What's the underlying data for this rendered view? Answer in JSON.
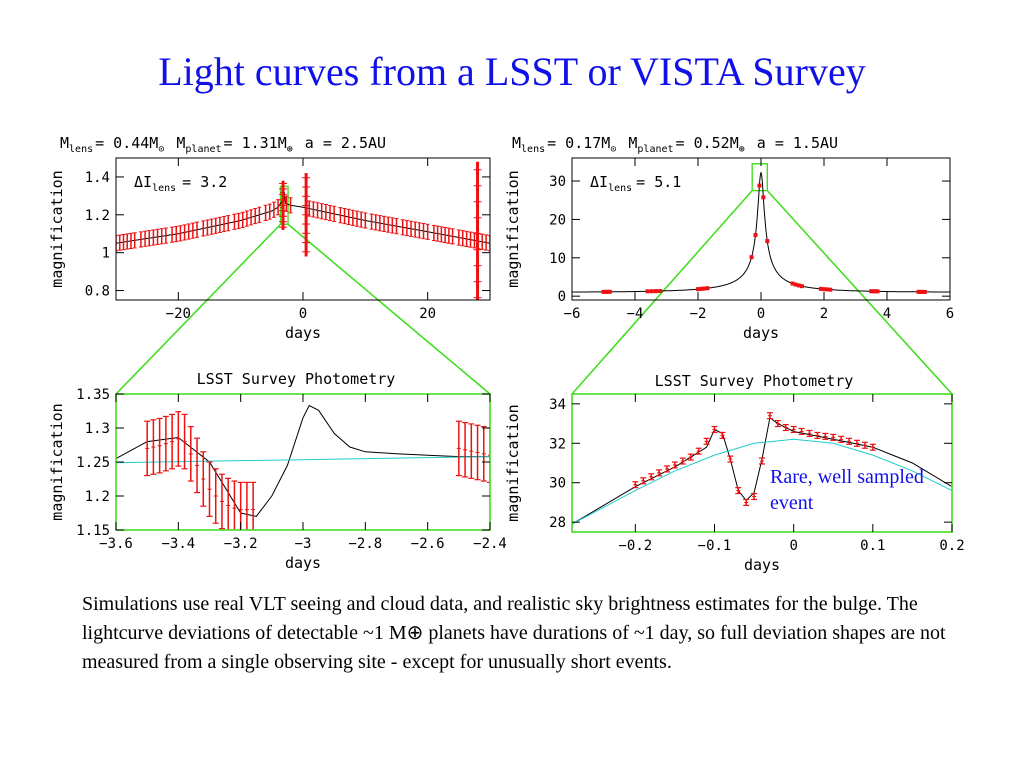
{
  "slide": {
    "title": "Light curves from a LSST or VISTA Survey",
    "body": "Simulations use real VLT seeing and cloud data, and realistic sky brightness estimates for the bulge. The lightcurve deviations of detectable ~1 M⊕  planets have durations of ~1 day, so full deviation shapes are not measured from a single observing site - except for unusually short events.",
    "annotation": "Rare, well sampled event"
  },
  "panels": {
    "tl": {
      "caption": {
        "m1": "M",
        "s1": "lens",
        "t1": "= 0.44M",
        "sym1": "⊙",
        "m2": "M",
        "s2": "planet",
        "t2": "= 1.31M",
        "sym2": "⊕",
        "t3": "a = 2.5AU"
      },
      "delta": {
        "d": "ΔI",
        "sub": "lens",
        "val": "= 3.2"
      }
    },
    "tr": {
      "caption": {
        "m1": "M",
        "s1": "lens",
        "t1": "= 0.17M",
        "sym1": "⊙",
        "m2": "M",
        "s2": "planet",
        "t2": "= 0.52M",
        "sym2": "⊕",
        "t3": "a = 1.5AU"
      },
      "delta": {
        "d": "ΔI",
        "sub": "lens",
        "val": "= 5.1"
      }
    },
    "bl": {
      "title": "LSST Survey Photometry"
    },
    "br": {
      "title": "LSST Survey Photometry"
    }
  },
  "colors": {
    "model": "#000000",
    "data": "#ee1111",
    "baseline": "#22cccc",
    "connector": "#44dd22",
    "title": "#1010e8"
  },
  "chart_data": [
    {
      "id": "tl",
      "type": "line",
      "xlabel": "days",
      "ylabel": "magnification",
      "xlim": [
        -30,
        30
      ],
      "ylim": [
        0.75,
        1.5
      ],
      "xticks": [
        -20,
        0,
        20
      ],
      "yticks": [
        0.8,
        1,
        1.2,
        1.4
      ],
      "ytick_labels": [
        "0.8",
        "1",
        "1.2",
        "1.4"
      ],
      "series": [
        {
          "type": "model",
          "points": [
            [
              -30,
              1.05
            ],
            [
              -20,
              1.1
            ],
            [
              -10,
              1.17
            ],
            [
              -5,
              1.22
            ],
            [
              -4,
              1.24
            ],
            [
              -3.4,
              1.27
            ],
            [
              -3,
              1.32
            ],
            [
              -2.8,
              1.26
            ],
            [
              -2,
              1.25
            ],
            [
              0,
              1.24
            ],
            [
              10,
              1.17
            ],
            [
              20,
              1.11
            ],
            [
              30,
              1.05
            ]
          ]
        },
        {
          "type": "data_segments",
          "segments": [
            [
              -30,
              -27
            ],
            [
              -26,
              -22
            ],
            [
              -21,
              -17
            ],
            [
              -16,
              -12
            ],
            [
              -11,
              -7
            ],
            [
              -6,
              -2
            ],
            [
              1,
              5
            ],
            [
              6,
              10
            ],
            [
              11,
              15
            ],
            [
              16,
              20
            ],
            [
              21,
              24
            ],
            [
              25,
              30
            ]
          ],
          "err": 0.04
        },
        {
          "type": "spikes",
          "points": [
            [
              -3.2,
              1.25,
              0.13
            ],
            [
              0.5,
              1.2,
              0.22
            ],
            [
              28,
              1.1,
              0.38
            ]
          ]
        }
      ]
    },
    {
      "id": "tr",
      "type": "line",
      "xlabel": "days",
      "ylabel": "magnification",
      "xlim": [
        -6,
        6
      ],
      "ylim": [
        -1,
        36
      ],
      "xticks": [
        -6,
        -4,
        -2,
        0,
        2,
        4,
        6
      ],
      "yticks": [
        0,
        10,
        20,
        30
      ],
      "ytick_labels": [
        "0",
        "10",
        "20",
        "30"
      ],
      "series": [
        {
          "type": "model",
          "u0": 0.031,
          "tE": 3.2
        },
        {
          "type": "data_segments",
          "segments": [
            [
              -5,
              -4.8
            ],
            [
              -3.6,
              -3.2
            ],
            [
              -2,
              -1.7
            ],
            [
              -0.3,
              0.2
            ],
            [
              1,
              1.3
            ],
            [
              1.9,
              2.2
            ],
            [
              3.5,
              3.7
            ],
            [
              5,
              5.2
            ]
          ]
        }
      ]
    },
    {
      "id": "bl",
      "type": "line",
      "title": "LSST Survey Photometry",
      "xlabel": "days",
      "ylabel": "magnification",
      "xlim": [
        -3.6,
        -2.4
      ],
      "ylim": [
        1.15,
        1.35
      ],
      "xticks": [
        -3.6,
        -3.4,
        -3.2,
        -3,
        -2.8,
        -2.6,
        -2.4
      ],
      "xtick_labels": [
        "−3.6",
        "−3.4",
        "−3.2",
        "−3",
        "−2.8",
        "−2.6",
        "−2.4"
      ],
      "yticks": [
        1.15,
        1.2,
        1.25,
        1.3,
        1.35
      ],
      "ytick_labels": [
        "1.15",
        "1.2",
        "1.25",
        "1.3",
        "1.35"
      ],
      "series": [
        {
          "name": "",
          "type": "model",
          "points": [
            [
              -3.6,
              1.255
            ],
            [
              -3.5,
              1.28
            ],
            [
              -3.4,
              1.286
            ],
            [
              -3.3,
              1.25
            ],
            [
              -3.2,
              1.175
            ],
            [
              -3.15,
              1.17
            ],
            [
              -3.1,
              1.2
            ],
            [
              -3.05,
              1.245
            ],
            [
              -3.0,
              1.315
            ],
            [
              -2.98,
              1.333
            ],
            [
              -2.95,
              1.326
            ],
            [
              -2.9,
              1.292
            ],
            [
              -2.85,
              1.272
            ],
            [
              -2.8,
              1.265
            ],
            [
              -2.7,
              1.262
            ],
            [
              -2.6,
              1.26
            ],
            [
              -2.5,
              1.258
            ],
            [
              -2.4,
              1.258
            ]
          ]
        },
        {
          "name": "",
          "type": "baseline",
          "points": [
            [
              -3.6,
              1.249
            ],
            [
              -2.4,
              1.258
            ]
          ]
        },
        {
          "name": "",
          "type": "errorbars",
          "x": [
            -3.5,
            -3.48,
            -3.46,
            -3.44,
            -3.42,
            -3.4,
            -3.38,
            -3.36,
            -3.34,
            -3.32,
            -3.3,
            -3.28,
            -3.26,
            -3.24,
            -3.22,
            -3.2,
            -3.18,
            -3.16,
            -2.5,
            -2.48,
            -2.46,
            -2.44,
            -2.42,
            -2.4
          ],
          "y": [
            1.27,
            1.272,
            1.274,
            1.277,
            1.28,
            1.284,
            1.28,
            1.262,
            1.245,
            1.225,
            1.21,
            1.2,
            1.192,
            1.186,
            1.182,
            1.18,
            1.18,
            1.18,
            1.27,
            1.268,
            1.266,
            1.264,
            1.262,
            1.26
          ],
          "err": 0.04
        }
      ]
    },
    {
      "id": "br",
      "type": "line",
      "title": "LSST Survey Photometry",
      "xlabel": "days",
      "ylabel": "magnification",
      "xlim": [
        -0.28,
        0.2
      ],
      "ylim": [
        27.5,
        34.5
      ],
      "xticks": [
        -0.2,
        -0.1,
        0,
        0.1,
        0.2
      ],
      "xtick_labels": [
        "−0.2",
        "−0.1",
        "0",
        "0.1",
        "0.2"
      ],
      "yticks": [
        28,
        30,
        32,
        34
      ],
      "ytick_labels": [
        "28",
        "30",
        "32",
        "34"
      ],
      "series": [
        {
          "name": "",
          "type": "model",
          "points": [
            [
              -0.28,
              27.9
            ],
            [
              -0.2,
              29.8
            ],
            [
              -0.15,
              30.8
            ],
            [
              -0.11,
              31.8
            ],
            [
              -0.1,
              32.7
            ],
            [
              -0.09,
              32.5
            ],
            [
              -0.08,
              31.2
            ],
            [
              -0.07,
              29.6
            ],
            [
              -0.06,
              29.1
            ],
            [
              -0.05,
              29.5
            ],
            [
              -0.04,
              31.2
            ],
            [
              -0.03,
              33.3
            ],
            [
              -0.02,
              33.0
            ],
            [
              0,
              32.6
            ],
            [
              0.05,
              32.2
            ],
            [
              0.1,
              31.8
            ],
            [
              0.15,
              31.0
            ],
            [
              0.2,
              29.8
            ]
          ]
        },
        {
          "name": "",
          "type": "baseline",
          "points": [
            [
              -0.28,
              27.9
            ],
            [
              -0.2,
              29.6
            ],
            [
              -0.15,
              30.6
            ],
            [
              -0.1,
              31.4
            ],
            [
              -0.05,
              32.0
            ],
            [
              0,
              32.2
            ],
            [
              0.05,
              32.0
            ],
            [
              0.1,
              31.4
            ],
            [
              0.15,
              30.6
            ],
            [
              0.2,
              29.6
            ]
          ]
        },
        {
          "name": "",
          "type": "errorbars",
          "x": [
            -0.2,
            -0.19,
            -0.18,
            -0.17,
            -0.16,
            -0.15,
            -0.14,
            -0.13,
            -0.12,
            -0.11,
            -0.1,
            -0.09,
            -0.08,
            -0.07,
            -0.06,
            -0.05,
            -0.04,
            -0.03,
            -0.02,
            -0.01,
            0,
            0.01,
            0.02,
            0.03,
            0.04,
            0.05,
            0.06,
            0.07,
            0.08,
            0.09,
            0.1
          ],
          "y": [
            29.9,
            30.1,
            30.3,
            30.5,
            30.7,
            30.9,
            31.1,
            31.3,
            31.6,
            32.1,
            32.7,
            32.4,
            31.2,
            29.6,
            29.0,
            29.3,
            31.1,
            33.4,
            33.0,
            32.8,
            32.7,
            32.6,
            32.5,
            32.4,
            32.35,
            32.3,
            32.2,
            32.1,
            32.0,
            31.9,
            31.8
          ],
          "err": 0.15
        }
      ]
    }
  ]
}
